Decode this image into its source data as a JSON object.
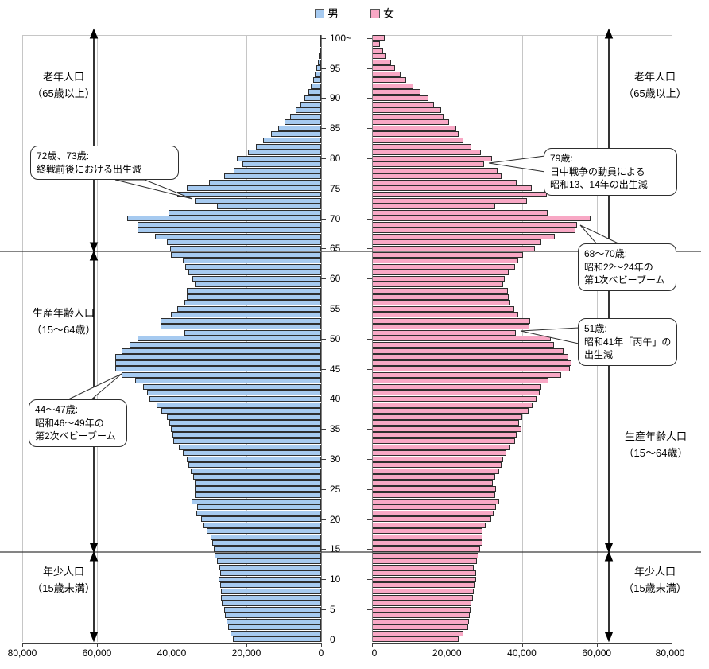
{
  "legend": {
    "male_label": "男",
    "female_label": "女"
  },
  "colors": {
    "male_fill": "#a6caf0",
    "female_fill": "#f8a8c5",
    "bar_border": "#2e2e2e",
    "gridline": "#c6c6c6",
    "boundary_line": "#3a3a3a"
  },
  "axis": {
    "x_ticks_left": [
      "80,000",
      "60,000",
      "40,000",
      "20,000",
      "0"
    ],
    "x_ticks_right": [
      "0",
      "20,000",
      "40,000",
      "60,000",
      "80,000"
    ],
    "age_tick_labels": [
      "100~",
      "95",
      "90",
      "85",
      "80",
      "75",
      "70",
      "65",
      "60",
      "55",
      "50",
      "45",
      "40",
      "35",
      "30",
      "25",
      "20",
      "15",
      "10",
      "5",
      "0"
    ]
  },
  "group_labels": {
    "elderly_left": {
      "line1": "老年人口",
      "line2": "（65歳以上）"
    },
    "working_left": {
      "line1": "生産年齢人口",
      "line2": "（15～64歳）"
    },
    "young_left": {
      "line1": "年少人口",
      "line2": "（15歳未満）"
    },
    "elderly_right": {
      "line1": "老年人口",
      "line2": "（65歳以上）"
    },
    "working_right": {
      "line1": "生産年齢人口",
      "line2": "（15～64歳）"
    },
    "young_right": {
      "line1": "年少人口",
      "line2": "（15歳未満）"
    }
  },
  "annotations": [
    {
      "id": "ann-72-73",
      "lines": [
        "72歳、73歳:",
        "終戦前後における出生減"
      ]
    },
    {
      "id": "ann-79",
      "lines": [
        "79歳:",
        "日中戦争の動員による",
        "昭和13、14年の出生減"
      ]
    },
    {
      "id": "ann-68-70",
      "lines": [
        "68～70歳:",
        "昭和22～24年の",
        "第1次ベビーブーム"
      ]
    },
    {
      "id": "ann-51",
      "lines": [
        "51歳:",
        "昭和41年「丙午」の",
        "出生減"
      ]
    },
    {
      "id": "ann-44-47",
      "lines": [
        "44～47歳:",
        "昭和46～49年の",
        "第2次ベビーブーム"
      ]
    }
  ],
  "chart_data": {
    "type": "bar",
    "variant": "population_pyramid",
    "x_axis": {
      "min": 0,
      "max": 80000,
      "tick_step": 20000
    },
    "age_axis": {
      "min": 0,
      "max_label": "100~",
      "label_step": 5
    },
    "grid": true,
    "legend_position": "top-center",
    "boundary_ages": [
      15,
      65
    ],
    "ages": "0..100 (single-year bars, index = age, last = 100 and over)",
    "series": [
      {
        "name": "男",
        "side": "left",
        "values": [
          23600,
          24300,
          24900,
          25300,
          25700,
          26000,
          26600,
          26800,
          26800,
          27000,
          27400,
          27000,
          27200,
          27800,
          28500,
          28700,
          29100,
          29600,
          30600,
          31500,
          32200,
          33500,
          33100,
          34700,
          33800,
          33800,
          33800,
          34200,
          34900,
          35600,
          36000,
          37000,
          38100,
          39500,
          39800,
          40200,
          40600,
          41300,
          42700,
          44100,
          45900,
          46600,
          47600,
          49800,
          53400,
          55100,
          55100,
          55100,
          53400,
          51200,
          49100,
          36500,
          43000,
          43000,
          40200,
          38500,
          36600,
          36000,
          36000,
          33800,
          34500,
          35600,
          36300,
          37000,
          40200,
          40500,
          41300,
          44500,
          49100,
          49100,
          51900,
          40900,
          27800,
          33800,
          38500,
          36000,
          30000,
          26000,
          23500,
          21000,
          22500,
          19500,
          17500,
          15500,
          13500,
          11500,
          9800,
          8200,
          6800,
          5500,
          4400,
          3500,
          2700,
          2100,
          1600,
          1200,
          900,
          650,
          450,
          300,
          400
        ]
      },
      {
        "name": "女",
        "side": "right",
        "values": [
          23100,
          24500,
          25600,
          25800,
          26000,
          26300,
          26500,
          27000,
          27200,
          27400,
          27700,
          27900,
          27200,
          28100,
          28400,
          28900,
          29400,
          29500,
          29500,
          30400,
          31900,
          32500,
          33000,
          34000,
          32800,
          33000,
          32300,
          32900,
          34000,
          34500,
          35100,
          35900,
          37000,
          38300,
          38700,
          39800,
          39300,
          40200,
          41900,
          42800,
          44000,
          44700,
          45100,
          47200,
          50600,
          52900,
          53200,
          52500,
          51100,
          48700,
          47800,
          38500,
          42100,
          42300,
          39100,
          38000,
          37000,
          36600,
          36200,
          35100,
          35500,
          36600,
          38300,
          39100,
          40400,
          43600,
          45100,
          48900,
          54300,
          54700,
          58300,
          46800,
          32800,
          41300,
          46600,
          42600,
          38700,
          34500,
          33500,
          30000,
          32000,
          29000,
          26500,
          24500,
          23200,
          22500,
          20500,
          19000,
          18500,
          16500,
          15000,
          13000,
          11000,
          9200,
          7600,
          6200,
          5000,
          3900,
          3000,
          2200,
          3500
        ]
      }
    ]
  }
}
